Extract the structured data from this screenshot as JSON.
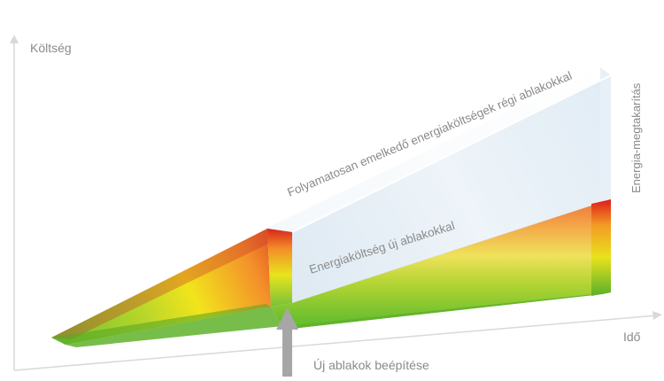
{
  "axes": {
    "y_label": "Költség",
    "x_label": "Idő",
    "axis_color": "#d9d9d9"
  },
  "labels": {
    "old_windows": "Folyamatosan emelkedő energiaköltségek régi ablakokkal",
    "new_windows": "Energiaköltség új ablakokkal",
    "savings": "Energia-megtakarítás",
    "installation": "Új ablakok beépítése"
  },
  "colors": {
    "text": "#8a8a8a",
    "arrow": "#a6a6a6",
    "green": "#6cbf2f",
    "yellow": "#f2e41c",
    "orange": "#f3902a",
    "red": "#e02a1e",
    "glass": "#e3eef6"
  }
}
